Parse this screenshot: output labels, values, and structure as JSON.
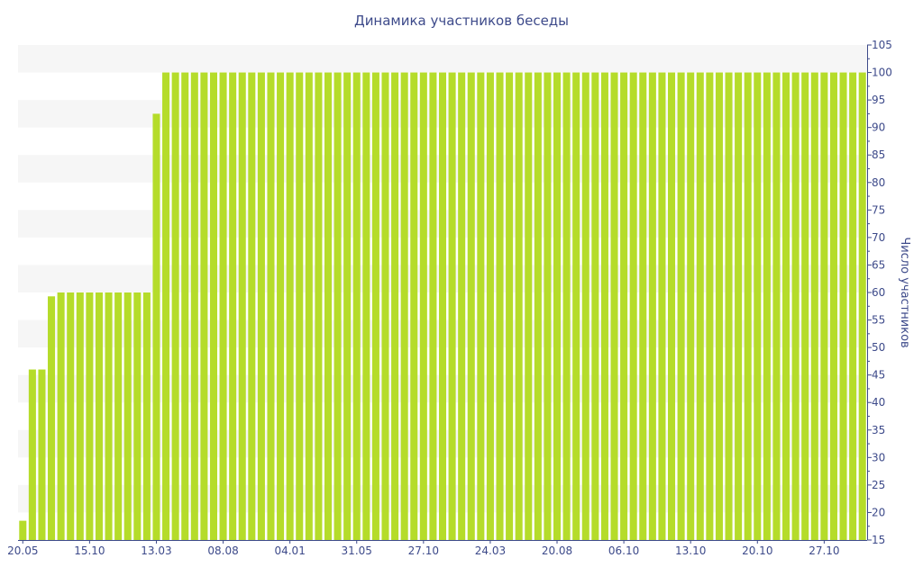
{
  "chart_data": {
    "type": "bar",
    "title": "Динамика участников беседы",
    "xlabel": "",
    "ylabel": "Число участников",
    "ylim": [
      15,
      105
    ],
    "y_ticks": [
      15,
      20,
      25,
      30,
      35,
      40,
      45,
      50,
      55,
      60,
      65,
      70,
      75,
      80,
      85,
      90,
      95,
      100,
      105
    ],
    "y_axis_side": "right",
    "x_tick_labels": [
      {
        "label": "20.05",
        "index": 0
      },
      {
        "label": "15.10",
        "index": 7
      },
      {
        "label": "13.03",
        "index": 14
      },
      {
        "label": "08.08",
        "index": 21
      },
      {
        "label": "04.01",
        "index": 28
      },
      {
        "label": "31.05",
        "index": 35
      },
      {
        "label": "27.10",
        "index": 42
      },
      {
        "label": "24.03",
        "index": 49
      },
      {
        "label": "20.08",
        "index": 56
      },
      {
        "label": "06.10",
        "index": 63
      },
      {
        "label": "13.10",
        "index": 70
      },
      {
        "label": "20.10",
        "index": 77
      },
      {
        "label": "27.10",
        "index": 84
      }
    ],
    "values": [
      18.5,
      46,
      46,
      59.3,
      60,
      60,
      60,
      60,
      60,
      60,
      60,
      60,
      60,
      60,
      92.5,
      100,
      100,
      100,
      100,
      100,
      100,
      100,
      100,
      100,
      100,
      100,
      100,
      100,
      100,
      100,
      100,
      100,
      100,
      100,
      100,
      100,
      100,
      100,
      100,
      100,
      100,
      100,
      100,
      100,
      100,
      100,
      100,
      100,
      100,
      100,
      100,
      100,
      100,
      100,
      100,
      100,
      100,
      100,
      100,
      100,
      100,
      100,
      100,
      100,
      100,
      100,
      100,
      100,
      100,
      100,
      100,
      100,
      100,
      100,
      100,
      100,
      100,
      100,
      100,
      100,
      100,
      100,
      100,
      100,
      100,
      100,
      100,
      100,
      100
    ],
    "grid": "alternating horizontal bands",
    "colors": {
      "bar": "#b5dc2a",
      "band": "#f6f6f6",
      "text": "#3d4a8a"
    }
  }
}
